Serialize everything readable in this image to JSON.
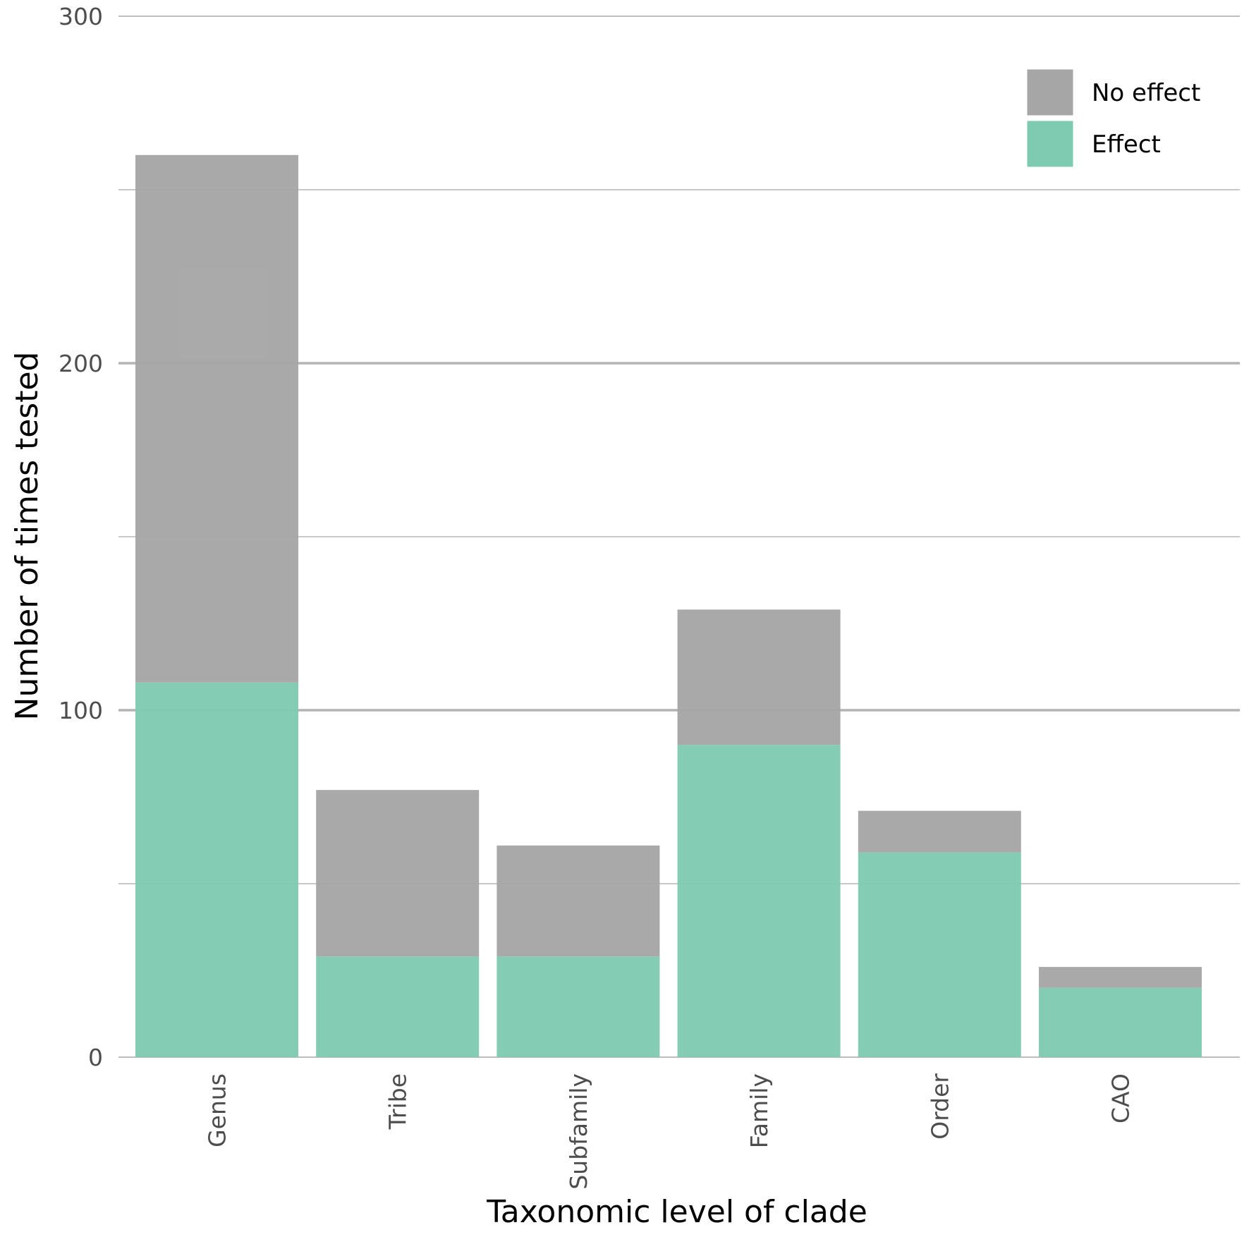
{
  "chart_data": {
    "type": "bar",
    "stacked": true,
    "categories": [
      "Genus",
      "Tribe",
      "Subfamily",
      "Family",
      "Order",
      "CAO"
    ],
    "series": [
      {
        "name": "Effect",
        "values": [
          108,
          29,
          29,
          90,
          59,
          20
        ],
        "color": "#7fcbb1"
      },
      {
        "name": "No effect",
        "values": [
          152,
          48,
          32,
          39,
          12,
          6
        ],
        "color": "#a6a6a6"
      }
    ],
    "xlabel": "Taxonomic level of clade",
    "ylabel": "Number of times tested",
    "ylim": [
      0,
      300
    ],
    "yticks": [
      0,
      100,
      200,
      300
    ],
    "grid": true,
    "legend_position": "top-right",
    "legend_order": [
      "No effect",
      "Effect"
    ]
  }
}
